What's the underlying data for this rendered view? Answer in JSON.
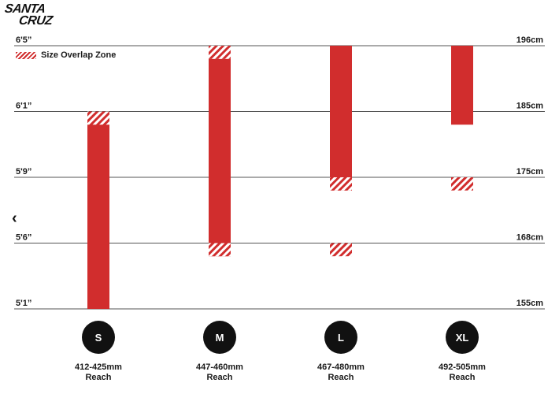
{
  "brand": {
    "line1": "SANTA",
    "line2": "CRUZ"
  },
  "legend": {
    "label": "Size Overlap Zone"
  },
  "colors": {
    "bar": "#d12d2d",
    "grid": "#555555",
    "circle": "#111111",
    "text": "#1a1a1a"
  },
  "icons": {
    "back": "chevron-left-icon"
  },
  "chart_data": {
    "type": "bar",
    "title": "",
    "grid": true,
    "legend_placement": "top-left",
    "y_levels": [
      {
        "left": "6'5”",
        "right": "196cm"
      },
      {
        "left": "6'1”",
        "right": "185cm"
      },
      {
        "left": "5'9”",
        "right": "175cm"
      },
      {
        "left": "5'6”",
        "right": "168cm"
      },
      {
        "left": "5'1”",
        "right": "155cm"
      }
    ],
    "ylim_levels": [
      0,
      4
    ],
    "sizes": [
      {
        "size": "S",
        "reach": "412-425mm",
        "reach_label": "Reach",
        "range_levels": [
          0,
          3
        ],
        "overlap_top_levels": [
          2.8,
          3.0
        ],
        "overlap_bottom_levels": null
      },
      {
        "size": "M",
        "reach": "447-460mm",
        "reach_label": "Reach",
        "range_levels": [
          0.8,
          3.8
        ],
        "overlap_top_levels": [
          3.8,
          4.0
        ],
        "overlap_bottom_levels": [
          0.8,
          1.0
        ]
      },
      {
        "size": "L",
        "reach": "467-480mm",
        "reach_label": "Reach",
        "range_levels": [
          1.8,
          4.0
        ],
        "overlap_top_levels": [
          1.8,
          2.0
        ],
        "overlap_bottom_levels": [
          0.8,
          1.0
        ]
      },
      {
        "size": "XL",
        "reach": "492-505mm",
        "reach_label": "Reach",
        "range_levels": [
          2.8,
          4.0
        ],
        "overlap_top_levels": null,
        "overlap_bottom_levels": [
          1.8,
          2.0
        ]
      }
    ]
  }
}
